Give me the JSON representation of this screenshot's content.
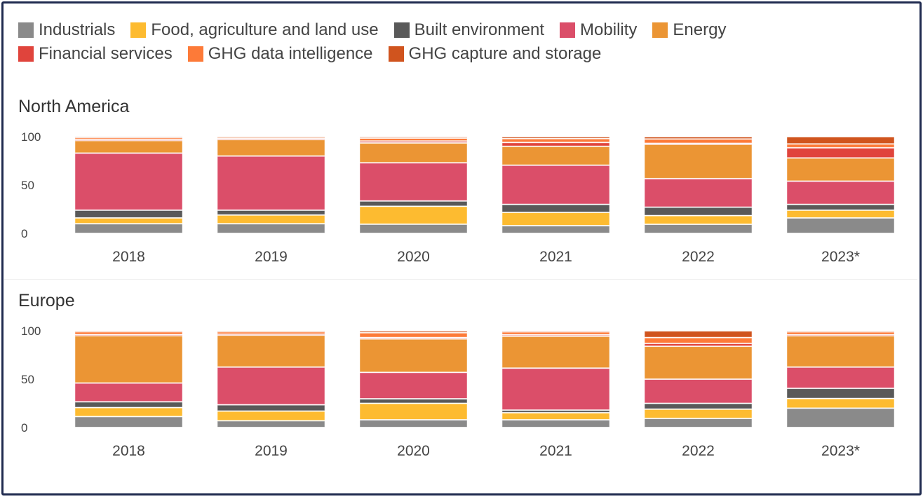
{
  "chart_data": {
    "type": "bar",
    "stacked": true,
    "legend_position": "top",
    "legend": [
      "Industrials",
      "Food, agriculture and land use",
      "Built environment",
      "Mobility",
      "Energy",
      "Financial services",
      "GHG data intelligence",
      "GHG capture and storage"
    ],
    "colors": [
      "#8a8a8a",
      "#fdbb30",
      "#595959",
      "#db4e69",
      "#eb9534",
      "#e0443c",
      "#fd7a38",
      "#d0541e"
    ],
    "categories": [
      "2018",
      "2019",
      "2020",
      "2021",
      "2022",
      "2023*"
    ],
    "yticks": [
      "0",
      "50",
      "100"
    ],
    "ylim": [
      0,
      100
    ],
    "panels": [
      {
        "title": "North America",
        "series": [
          {
            "name": "Industrials",
            "values": [
              10,
              10,
              9.5,
              8,
              9.4,
              16
            ]
          },
          {
            "name": "Food, agriculture and land use",
            "values": [
              6,
              9,
              18.5,
              13.7,
              9,
              8
            ]
          },
          {
            "name": "Built environment",
            "values": [
              8,
              5,
              5.5,
              8.3,
              8.7,
              6
            ]
          },
          {
            "name": "Mobility",
            "values": [
              59,
              56,
              39.5,
              40.5,
              29.5,
              24
            ]
          },
          {
            "name": "Energy",
            "values": [
              13,
              17,
              20.5,
              19.5,
              35.5,
              24
            ]
          },
          {
            "name": "Financial services",
            "values": [
              1,
              1,
              2,
              4,
              1,
              10.5
            ]
          },
          {
            "name": "GHG data intelligence",
            "values": [
              2,
              1.5,
              3,
              4,
              4.5,
              4
            ]
          },
          {
            "name": "GHG capture and storage",
            "values": [
              1,
              0.5,
              1.5,
              2,
              2.4,
              7.5
            ]
          }
        ]
      },
      {
        "title": "Europe",
        "series": [
          {
            "name": "Industrials",
            "values": [
              11.3,
              7,
              8,
              8,
              9.4,
              20
            ]
          },
          {
            "name": "Food, agriculture and land use",
            "values": [
              9.3,
              10,
              17,
              7.3,
              9.6,
              10
            ]
          },
          {
            "name": "Built environment",
            "values": [
              6,
              6.5,
              4.7,
              2.7,
              6,
              10.5
            ]
          },
          {
            "name": "Mobility",
            "values": [
              19.4,
              39,
              27.3,
              43.4,
              25,
              22
            ]
          },
          {
            "name": "Energy",
            "values": [
              49,
              33,
              34.6,
              33,
              34,
              32.4
            ]
          },
          {
            "name": "Financial services",
            "values": [
              1,
              1,
              1.4,
              1.5,
              3,
              1
            ]
          },
          {
            "name": "GHG data intelligence",
            "values": [
              3,
              2.5,
              5,
              3,
              6,
              3
            ]
          },
          {
            "name": "GHG capture and storage",
            "values": [
              1,
              1,
              2,
              1,
              7,
              1.1
            ]
          }
        ]
      }
    ]
  }
}
